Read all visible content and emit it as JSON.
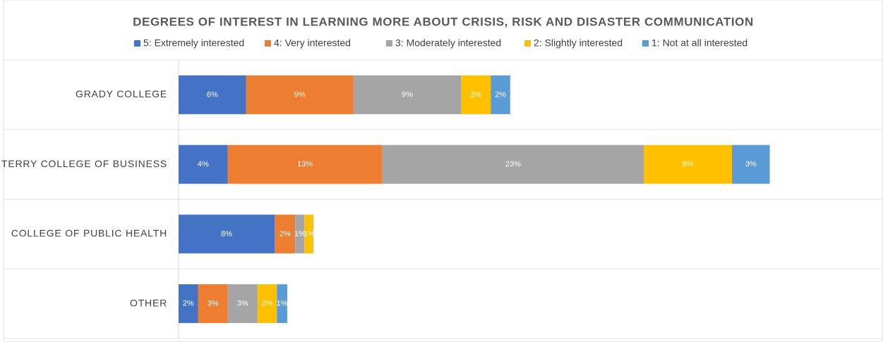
{
  "chart_data": {
    "type": "stacked-bar-horizontal",
    "title": "DEGREES OF INTEREST IN LEARNING MORE ABOUT CRISIS, RISK AND DISASTER COMMUNICATION",
    "categories": [
      "GRADY COLLEGE",
      "TERRY COLLEGE OF BUSINESS",
      "COLLEGE OF PUBLIC HEALTH",
      "OTHER"
    ],
    "series": [
      {
        "name": "5: Extremely interested",
        "color": "#4472c4",
        "values": [
          5.9,
          4.3,
          8.4,
          1.7
        ],
        "value_labels": [
          "6%",
          "4%",
          "8%",
          "2%"
        ]
      },
      {
        "name": "4: Very interested",
        "color": "#ed7d31",
        "values": [
          9.4,
          13.5,
          1.8,
          2.6
        ],
        "value_labels": [
          "9%",
          "13%",
          "2%",
          "3%"
        ]
      },
      {
        "name": "3: Moderately interested",
        "color": "#a5a5a5",
        "values": [
          9.4,
          22.9,
          0.8,
          2.6
        ],
        "value_labels": [
          "9%",
          "23%",
          "1%",
          "3%"
        ]
      },
      {
        "name": "2: Slightly interested",
        "color": "#ffc000",
        "values": [
          2.6,
          7.7,
          0.8,
          1.7
        ],
        "value_labels": [
          "3%",
          "8%",
          "1%",
          "2%"
        ]
      },
      {
        "name": "1: Not at all interested",
        "color": "#5b9bd5",
        "values": [
          1.7,
          3.3,
          0,
          0.9
        ],
        "value_labels": [
          "2%",
          "3%",
          null,
          "1%"
        ]
      }
    ],
    "xlim": [
      0,
      60
    ],
    "legend": "top"
  }
}
